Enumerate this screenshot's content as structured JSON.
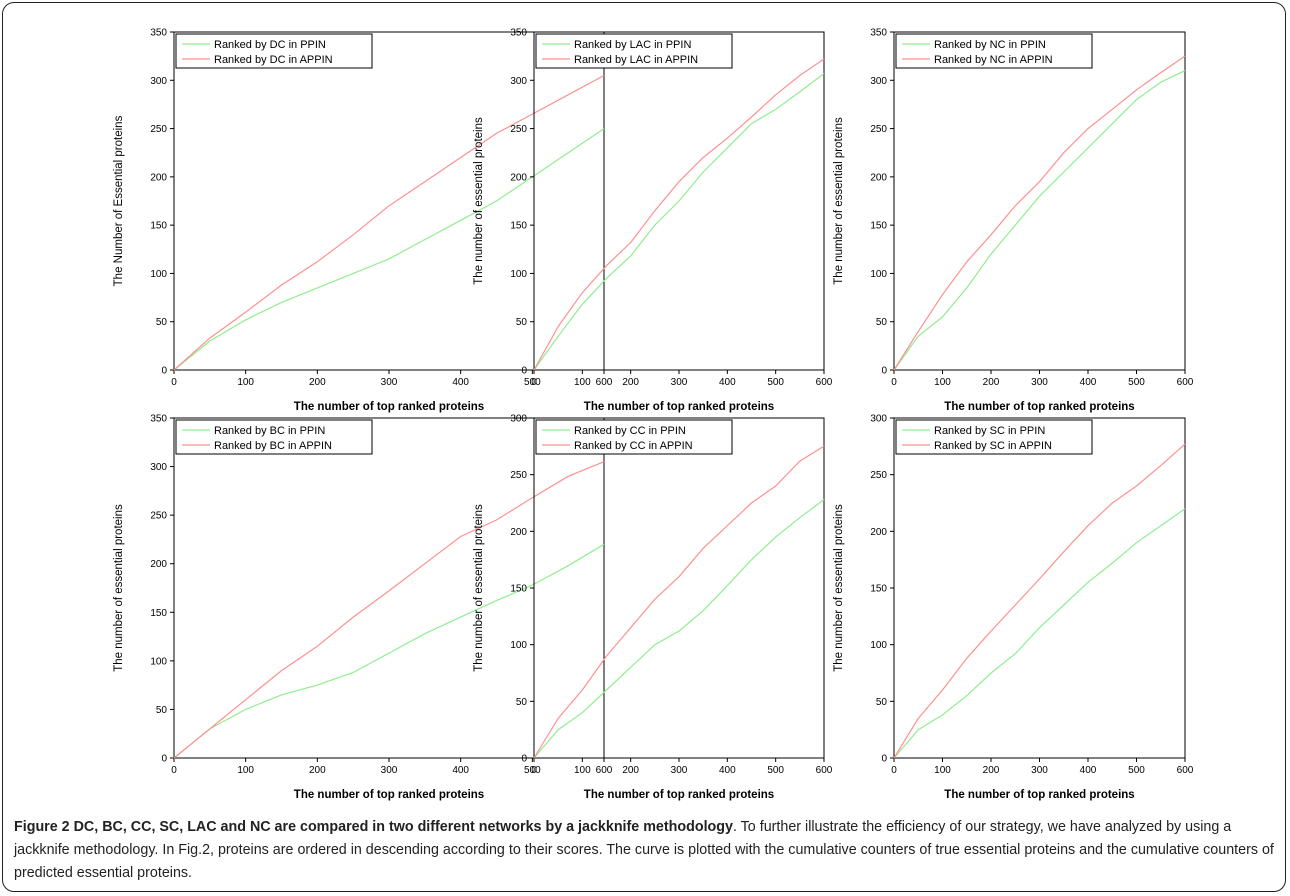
{
  "figure": {
    "caption_label": "Figure 2",
    "caption_title": "DC, BC, CC, SC, LAC and NC are compared in two different networks by a jackknife methodology",
    "caption_body": ". To further illustrate the efficiency of our strategy, we have analyzed by using a jackknife methodology. In Fig.2, proteins are ordered in descending according to their scores. The curve is plotted with the cumulative counters of true essential proteins and the cumulative counters of predicted essential proteins."
  },
  "colors": {
    "ppin": "#90ee90",
    "appin": "#ff9090",
    "axis": "#000000"
  },
  "chart_data": [
    {
      "type": "line",
      "xlabel": "The number of top ranked proteins",
      "ylabel": "The Number of Essential proteins",
      "xlim": [
        0,
        600
      ],
      "ylim": [
        0,
        350
      ],
      "xticks": [
        0,
        100,
        200,
        300,
        400,
        500,
        600
      ],
      "yticks": [
        0,
        50,
        100,
        150,
        200,
        250,
        300,
        350
      ],
      "legend": "top-left",
      "series": [
        {
          "name": "Ranked by DC in PPIN",
          "color": "#90ee90",
          "x": [
            0,
            50,
            100,
            150,
            200,
            250,
            300,
            350,
            400,
            450,
            500,
            550,
            600
          ],
          "y": [
            0,
            30,
            52,
            70,
            85,
            100,
            115,
            135,
            155,
            175,
            200,
            225,
            250
          ]
        },
        {
          "name": "Ranked by DC in APPIN",
          "color": "#ff9090",
          "x": [
            0,
            50,
            100,
            150,
            200,
            250,
            300,
            350,
            400,
            450,
            500,
            550,
            600
          ],
          "y": [
            0,
            33,
            60,
            88,
            112,
            140,
            170,
            195,
            220,
            245,
            265,
            285,
            305
          ]
        }
      ]
    },
    {
      "type": "line",
      "xlabel": "The number of top ranked proteins",
      "ylabel": "The number of essential proteins",
      "xlim": [
        0,
        600
      ],
      "ylim": [
        0,
        350
      ],
      "xticks": [
        0,
        100,
        200,
        300,
        400,
        500,
        600
      ],
      "yticks": [
        0,
        50,
        100,
        150,
        200,
        250,
        300,
        350
      ],
      "legend": "top-left",
      "series": [
        {
          "name": "Ranked by LAC in PPIN",
          "color": "#90ee90",
          "x": [
            0,
            50,
            100,
            150,
            200,
            250,
            300,
            350,
            400,
            450,
            500,
            550,
            600
          ],
          "y": [
            0,
            35,
            68,
            95,
            118,
            150,
            175,
            205,
            230,
            255,
            270,
            288,
            307
          ]
        },
        {
          "name": "Ranked by LAC in APPIN",
          "color": "#ff9090",
          "x": [
            0,
            50,
            100,
            150,
            200,
            250,
            300,
            350,
            400,
            450,
            500,
            550,
            600
          ],
          "y": [
            0,
            45,
            80,
            108,
            132,
            165,
            195,
            220,
            240,
            262,
            285,
            305,
            322
          ]
        }
      ]
    },
    {
      "type": "line",
      "xlabel": "The number of top ranked proteins",
      "ylabel": "The number of essential proteins",
      "xlim": [
        0,
        600
      ],
      "ylim": [
        0,
        350
      ],
      "xticks": [
        0,
        100,
        200,
        300,
        400,
        500,
        600
      ],
      "yticks": [
        0,
        50,
        100,
        150,
        200,
        250,
        300,
        350
      ],
      "legend": "top-left",
      "series": [
        {
          "name": "Ranked by NC in PPIN",
          "color": "#90ee90",
          "x": [
            0,
            50,
            100,
            150,
            200,
            250,
            300,
            350,
            400,
            450,
            500,
            550,
            600
          ],
          "y": [
            0,
            35,
            55,
            85,
            120,
            150,
            180,
            205,
            230,
            255,
            280,
            298,
            310
          ]
        },
        {
          "name": "Ranked by NC in APPIN",
          "color": "#ff9090",
          "x": [
            0,
            50,
            100,
            150,
            200,
            250,
            300,
            350,
            400,
            450,
            500,
            550,
            600
          ],
          "y": [
            0,
            40,
            78,
            112,
            140,
            170,
            195,
            225,
            250,
            270,
            290,
            308,
            325
          ]
        }
      ]
    },
    {
      "type": "line",
      "xlabel": "The number of top ranked proteins",
      "ylabel": "The number of essential proteins",
      "xlim": [
        0,
        600
      ],
      "ylim": [
        0,
        350
      ],
      "xticks": [
        0,
        100,
        200,
        300,
        400,
        500,
        600
      ],
      "yticks": [
        0,
        50,
        100,
        150,
        200,
        250,
        300,
        350
      ],
      "legend": "top-left",
      "series": [
        {
          "name": "Ranked by BC in PPIN",
          "color": "#90ee90",
          "x": [
            0,
            50,
            100,
            150,
            200,
            250,
            300,
            350,
            400,
            450,
            500,
            550,
            600
          ],
          "y": [
            0,
            30,
            50,
            65,
            75,
            88,
            108,
            128,
            145,
            162,
            178,
            198,
            220
          ]
        },
        {
          "name": "Ranked by BC in APPIN",
          "color": "#ff9090",
          "x": [
            0,
            50,
            100,
            150,
            200,
            250,
            300,
            350,
            400,
            450,
            500,
            550,
            600
          ],
          "y": [
            0,
            30,
            60,
            90,
            115,
            145,
            172,
            200,
            228,
            245,
            268,
            290,
            305
          ]
        }
      ]
    },
    {
      "type": "line",
      "xlabel": "The number of top ranked proteins",
      "ylabel": "The number of essential proteins",
      "xlim": [
        0,
        600
      ],
      "ylim": [
        0,
        300
      ],
      "xticks": [
        0,
        100,
        200,
        300,
        400,
        500,
        600
      ],
      "yticks": [
        0,
        50,
        100,
        150,
        200,
        250,
        300
      ],
      "legend": "top-left",
      "series": [
        {
          "name": "Ranked by CC in PPIN",
          "color": "#90ee90",
          "x": [
            0,
            50,
            100,
            150,
            200,
            250,
            300,
            350,
            400,
            450,
            500,
            550,
            600
          ],
          "y": [
            0,
            25,
            40,
            60,
            80,
            100,
            112,
            130,
            152,
            175,
            195,
            212,
            228
          ]
        },
        {
          "name": "Ranked by CC in APPIN",
          "color": "#ff9090",
          "x": [
            0,
            50,
            100,
            150,
            200,
            250,
            300,
            350,
            400,
            450,
            500,
            550,
            600
          ],
          "y": [
            0,
            35,
            60,
            90,
            115,
            140,
            160,
            185,
            205,
            225,
            240,
            262,
            275
          ]
        }
      ]
    },
    {
      "type": "line",
      "xlabel": "The number of top ranked proteins",
      "ylabel": "The number of essential proteins",
      "xlim": [
        0,
        600
      ],
      "ylim": [
        0,
        300
      ],
      "xticks": [
        0,
        100,
        200,
        300,
        400,
        500,
        600
      ],
      "yticks": [
        0,
        50,
        100,
        150,
        200,
        250,
        300
      ],
      "legend": "top-left",
      "series": [
        {
          "name": "Ranked by SC in PPIN",
          "color": "#90ee90",
          "x": [
            0,
            50,
            100,
            150,
            200,
            250,
            300,
            350,
            400,
            450,
            500,
            550,
            600
          ],
          "y": [
            0,
            25,
            38,
            55,
            75,
            92,
            115,
            135,
            155,
            172,
            190,
            205,
            220
          ]
        },
        {
          "name": "Ranked by SC in APPIN",
          "color": "#ff9090",
          "x": [
            0,
            50,
            100,
            150,
            200,
            250,
            300,
            350,
            400,
            450,
            500,
            550,
            600
          ],
          "y": [
            0,
            35,
            60,
            88,
            112,
            135,
            158,
            182,
            205,
            225,
            240,
            258,
            277
          ]
        }
      ]
    }
  ]
}
